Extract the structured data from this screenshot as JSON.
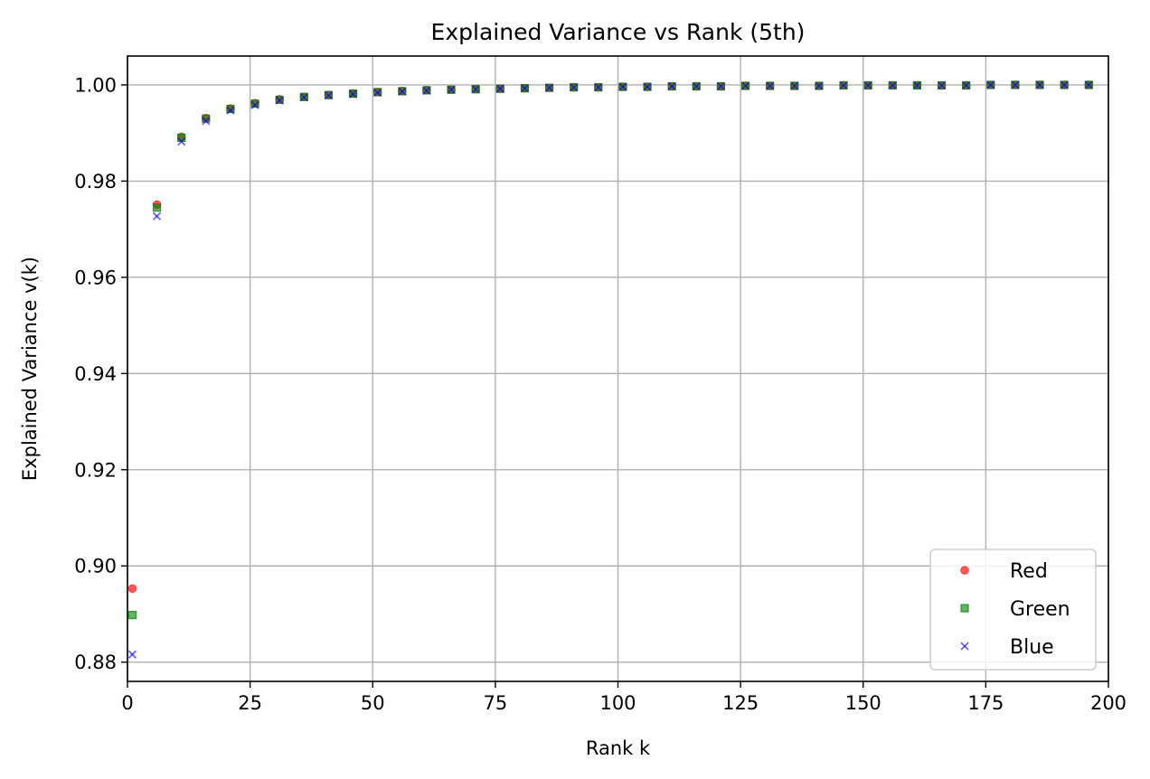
{
  "chart_data": {
    "type": "scatter",
    "title": "Explained Variance vs Rank (5th)",
    "xlabel": "Rank k",
    "ylabel": "Explained Variance v(k)",
    "xlim": [
      0,
      200
    ],
    "ylim": [
      0.876,
      1.006
    ],
    "xticks": [
      0,
      25,
      50,
      75,
      100,
      125,
      150,
      175,
      200
    ],
    "yticks": [
      0.88,
      0.9,
      0.92,
      0.94,
      0.96,
      0.98,
      1.0
    ],
    "ytick_labels": [
      "0.88",
      "0.90",
      "0.92",
      "0.94",
      "0.96",
      "0.98",
      "1.00"
    ],
    "grid": true,
    "legend_position": "lower-right",
    "x": [
      1,
      6,
      11,
      16,
      21,
      26,
      31,
      36,
      41,
      46,
      51,
      56,
      61,
      66,
      71,
      76,
      81,
      86,
      91,
      96,
      101,
      106,
      111,
      116,
      121,
      126,
      131,
      136,
      141,
      146,
      151,
      156,
      161,
      166,
      171,
      176,
      181,
      186,
      191,
      196
    ],
    "series": [
      {
        "name": "Red",
        "marker": "circle",
        "color": "#ff0000",
        "values": [
          0.8953,
          0.9751,
          0.9892,
          0.9931,
          0.9951,
          0.9962,
          0.997,
          0.9975,
          0.9979,
          0.9982,
          0.9985,
          0.9987,
          0.9989,
          0.999,
          0.9991,
          0.9992,
          0.9993,
          0.9994,
          0.9995,
          0.9995,
          0.9996,
          0.9996,
          0.9997,
          0.9997,
          0.9997,
          0.9998,
          0.9998,
          0.9998,
          0.9998,
          0.9999,
          0.9999,
          0.9999,
          0.9999,
          0.9999,
          0.9999,
          1.0,
          1.0,
          1.0,
          1.0,
          1.0
        ]
      },
      {
        "name": "Green",
        "marker": "square",
        "color": "#008000",
        "values": [
          0.8898,
          0.9745,
          0.989,
          0.993,
          0.995,
          0.9961,
          0.9969,
          0.9975,
          0.9979,
          0.9982,
          0.9985,
          0.9987,
          0.9989,
          0.999,
          0.9991,
          0.9992,
          0.9993,
          0.9994,
          0.9995,
          0.9995,
          0.9996,
          0.9996,
          0.9997,
          0.9997,
          0.9997,
          0.9998,
          0.9998,
          0.9998,
          0.9998,
          0.9999,
          0.9999,
          0.9999,
          0.9999,
          0.9999,
          0.9999,
          1.0,
          1.0,
          1.0,
          1.0,
          1.0
        ]
      },
      {
        "name": "Blue",
        "marker": "x",
        "color": "#0000ff",
        "values": [
          0.8816,
          0.9727,
          0.9882,
          0.9925,
          0.9947,
          0.9958,
          0.9968,
          0.9974,
          0.9978,
          0.9981,
          0.9984,
          0.9986,
          0.9988,
          0.999,
          0.9991,
          0.9992,
          0.9993,
          0.9994,
          0.9995,
          0.9995,
          0.9996,
          0.9996,
          0.9997,
          0.9997,
          0.9997,
          0.9998,
          0.9998,
          0.9998,
          0.9998,
          0.9999,
          0.9999,
          0.9999,
          0.9999,
          0.9999,
          0.9999,
          1.0,
          1.0,
          1.0,
          1.0,
          1.0
        ]
      }
    ]
  }
}
